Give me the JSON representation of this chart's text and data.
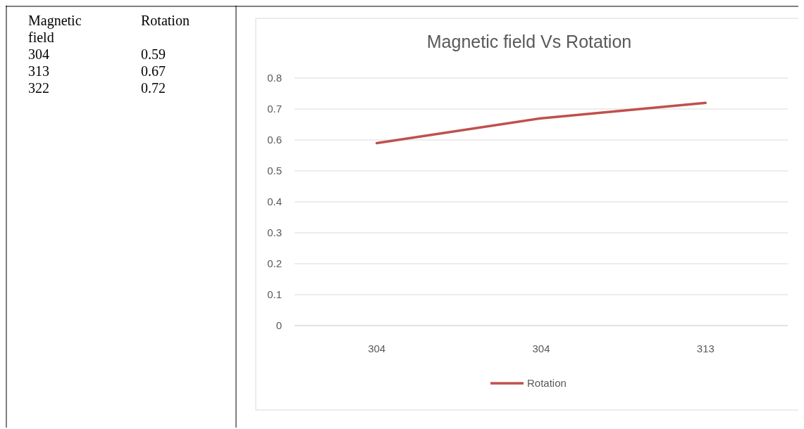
{
  "chart_data": [
    {
      "type": "other",
      "annotations": [
        "Magnetic field",
        "Rotation",
        "304",
        "0.59",
        "313",
        "0.67",
        "322",
        "0.72"
      ]
    },
    {
      "type": "line",
      "title": "Magnetic field Vs Rotation",
      "categories": [
        "304",
        "304",
        "313"
      ],
      "series": [
        {
          "name": "Rotation",
          "color": "#c0504d",
          "values": [
            0.59,
            0.67,
            0.72
          ]
        }
      ],
      "ylim": [
        0,
        0.8
      ],
      "yticks": [
        0,
        0.1,
        0.2,
        0.3,
        0.4,
        0.5,
        0.6,
        0.7,
        0.8
      ],
      "grid": "y",
      "legend": "bottom",
      "marker": "none",
      "line_style": "solid"
    }
  ]
}
